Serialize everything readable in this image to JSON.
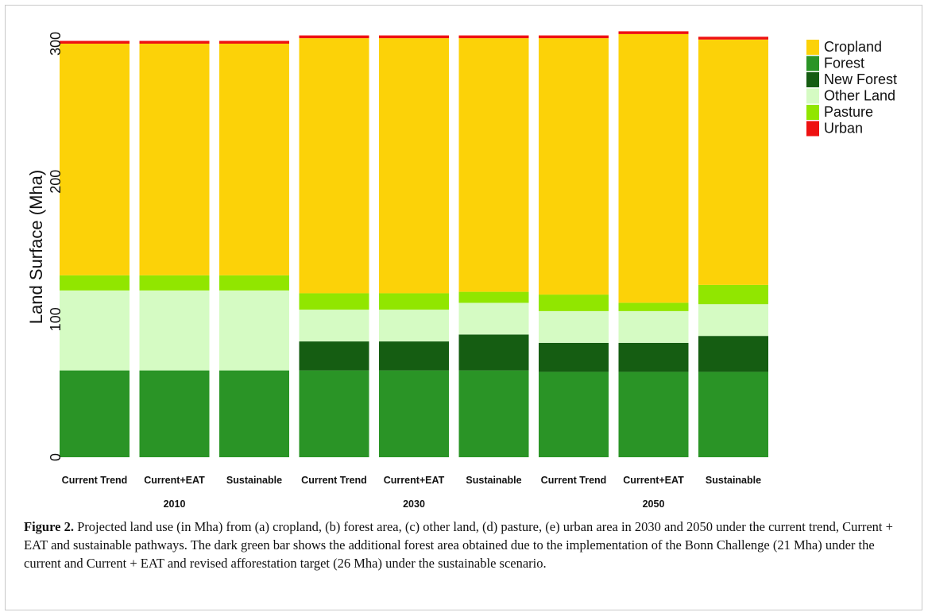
{
  "chart_data": {
    "type": "bar",
    "stacked": true,
    "ylabel": "Land Surface (Mha)",
    "ylim": [
      0,
      310
    ],
    "yticks": [
      0,
      100,
      200,
      300
    ],
    "grid": false,
    "legend_position": "right",
    "categories": [
      "Current Trend",
      "Current+EAT",
      "Sustainable",
      "Current Trend",
      "Current+EAT",
      "Sustainable",
      "Current Trend",
      "Current+EAT",
      "Sustainable"
    ],
    "groups": [
      {
        "label": "2010",
        "start": 0,
        "end": 2
      },
      {
        "label": "2030",
        "start": 3,
        "end": 5
      },
      {
        "label": "2050",
        "start": 6,
        "end": 8
      }
    ],
    "series": [
      {
        "name": "Forest",
        "color": "#2a9426",
        "values": [
          63,
          63,
          63,
          63,
          63,
          63,
          62,
          62,
          62
        ]
      },
      {
        "name": "New Forest",
        "color": "#155d12",
        "values": [
          0,
          0,
          0,
          21,
          21,
          26,
          21,
          21,
          26
        ]
      },
      {
        "name": "Other Land",
        "color": "#d5fbc3",
        "values": [
          58,
          58,
          58,
          23,
          23,
          23,
          23,
          23,
          23
        ]
      },
      {
        "name": "Pasture",
        "color": "#91e600",
        "values": [
          11,
          11,
          11,
          12,
          12,
          8,
          12,
          6,
          14
        ]
      },
      {
        "name": "Cropland",
        "color": "#fcd208",
        "values": [
          168,
          168,
          168,
          185,
          185,
          184,
          186,
          195,
          178
        ]
      },
      {
        "name": "Urban",
        "color": "#ee1111",
        "values": [
          2,
          2,
          2,
          2,
          2,
          2,
          2,
          2,
          2
        ]
      }
    ],
    "legend_order": [
      "Cropland",
      "Forest",
      "New Forest",
      "Other Land",
      "Pasture",
      "Urban"
    ]
  },
  "caption": {
    "label": "Figure 2.",
    "text": " Projected land use (in Mha) from (a) cropland, (b) forest area, (c) other land, (d) pasture, (e) urban area in 2030 and 2050 under the current trend, Current + EAT and sustainable pathways. The dark green bar shows the additional forest area obtained due to the implementation of the Bonn Challenge (21 Mha) under the current and Current + EAT and revised afforestation target (26 Mha) under the sustainable scenario."
  }
}
